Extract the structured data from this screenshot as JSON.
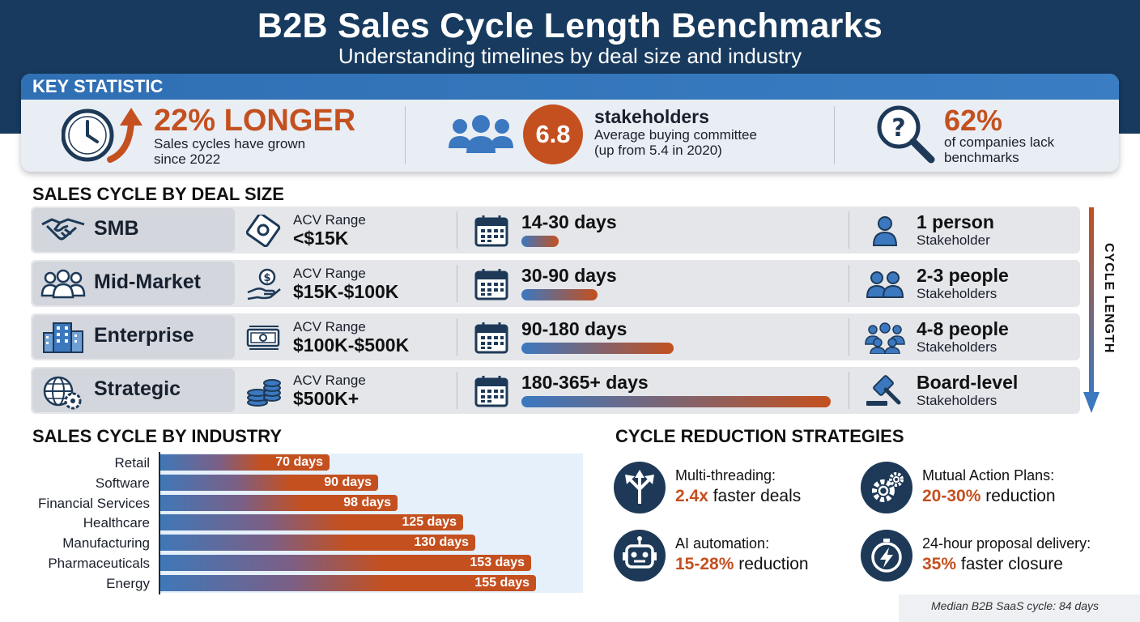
{
  "header": {
    "title": "B2B Sales Cycle Length Benchmarks",
    "subtitle": "Understanding timelines by deal size and industry"
  },
  "key_statistic": {
    "heading": "KEY STATISTIC",
    "stats": [
      {
        "value": "22% LONGER",
        "text_line1": "Sales cycles have grown",
        "text_line2": "since 2022",
        "icon": "clock-up-arrow-icon"
      },
      {
        "value": "6.8",
        "headline": "stakeholders",
        "text_line1": "Average buying committee",
        "text_line2": "(up from 5.4 in 2020)",
        "icon": "group-icon"
      },
      {
        "value": "62%",
        "text_line1": "of companies lack",
        "text_line2": "benchmarks",
        "icon": "magnifier-question-icon"
      }
    ]
  },
  "deal_size": {
    "heading": "SALES CYCLE BY DEAL SIZE",
    "side_label": "CYCLE LENGTH",
    "acv_caption": "ACV Range",
    "rows": [
      {
        "segment": "SMB",
        "acv": "<$15K",
        "days": "14-30 days",
        "days_max": 30,
        "people": "1 person",
        "stakeholder_caption": "Stakeholder",
        "icon": "handshake-icon"
      },
      {
        "segment": "Mid-Market",
        "acv": "$15K-$100K",
        "days": "30-90 days",
        "days_max": 90,
        "people": "2-3 people",
        "stakeholder_caption": "Stakeholders",
        "icon": "people-icon"
      },
      {
        "segment": "Enterprise",
        "acv": "$100K-$500K",
        "days": "90-180 days",
        "days_max": 180,
        "people": "4-8 people",
        "stakeholder_caption": "Stakeholders",
        "icon": "building-icon"
      },
      {
        "segment": "Strategic",
        "acv": "$500K+",
        "days": "180-365+ days",
        "days_max": 365,
        "people": "Board-level",
        "stakeholder_caption": "Stakeholders",
        "icon": "globe-gear-icon"
      }
    ]
  },
  "industry": {
    "heading": "SALES CYCLE BY INDUSTRY"
  },
  "chart_data": {
    "type": "bar",
    "orientation": "horizontal",
    "title": "SALES CYCLE BY INDUSTRY",
    "categories": [
      "Retail",
      "Software",
      "Financial Services",
      "Healthcare",
      "Manufacturing",
      "Pharmaceuticals",
      "Energy"
    ],
    "values": [
      70,
      90,
      98,
      125,
      130,
      153,
      155
    ],
    "value_labels": [
      "70 days",
      "90 days",
      "98 days",
      "125 days",
      "130 days",
      "153 days",
      "155 days"
    ],
    "unit": "days",
    "xlim": [
      0,
      180
    ],
    "grid": false
  },
  "strategies": {
    "heading": "CYCLE REDUCTION STRATEGIES",
    "items": [
      {
        "label": "Multi-threading:",
        "value": "2.4x",
        "rest": " faster deals",
        "icon": "split-arrows-icon"
      },
      {
        "label": "Mutual Action Plans:",
        "value": "20-30%",
        "rest": " reduction",
        "icon": "gears-icon"
      },
      {
        "label": "AI automation:",
        "value": "15-28%",
        "rest": " reduction",
        "icon": "robot-icon"
      },
      {
        "label": "24-hour proposal delivery:",
        "value": "35%",
        "rest": " faster closure",
        "icon": "stopwatch-bolt-icon"
      }
    ]
  },
  "footnote": "Median B2B SaaS cycle: 84 days",
  "colors": {
    "navy": "#173a5e",
    "orange": "#c4501f",
    "blue": "#3b78c0",
    "light_blue": "#e5f0fa"
  }
}
